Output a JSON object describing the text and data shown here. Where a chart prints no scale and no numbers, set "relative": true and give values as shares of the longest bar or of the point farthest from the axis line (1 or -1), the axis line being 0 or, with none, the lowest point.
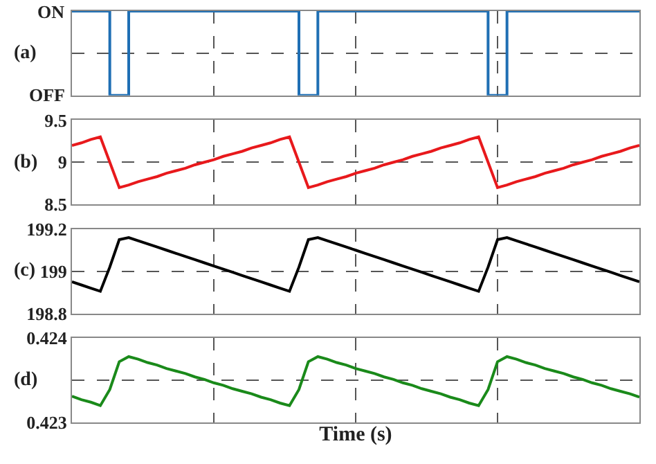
{
  "chart_data": [
    {
      "type": "step",
      "annotations": [
        "(a)",
        "ON",
        "OFF"
      ],
      "relative": true,
      "categories": [
        null,
        null,
        null,
        null,
        null,
        null,
        null,
        null,
        null,
        null,
        null,
        null,
        null,
        null,
        null,
        null,
        null,
        null,
        null,
        null,
        null,
        null,
        null,
        null,
        null,
        null,
        null,
        null,
        null,
        null,
        null,
        null,
        null,
        null,
        null,
        null,
        null,
        null,
        null,
        null,
        null,
        null,
        null,
        null,
        null,
        null,
        null,
        null,
        null,
        null,
        null,
        null,
        null,
        null,
        null,
        null,
        null,
        null,
        null,
        null,
        null
      ],
      "series": [
        {
          "color": "#1f6fb4",
          "values": [
            1,
            1,
            1,
            1,
            0,
            0,
            1,
            1,
            1,
            1,
            1,
            1,
            1,
            1,
            1,
            1,
            1,
            1,
            1,
            1,
            1,
            1,
            1,
            1,
            0,
            0,
            1,
            1,
            1,
            1,
            1,
            1,
            1,
            1,
            1,
            1,
            1,
            1,
            1,
            1,
            1,
            1,
            1,
            1,
            0,
            0,
            1,
            1,
            1,
            1,
            1,
            1,
            1,
            1,
            1,
            1,
            1,
            1,
            1,
            1,
            1
          ]
        }
      ],
      "grid": true,
      "tick_labels": "y"
    },
    {
      "type": "line",
      "annotations": [
        "(b)"
      ],
      "categories": [
        null,
        null,
        null,
        null,
        null,
        null,
        null,
        null,
        null,
        null,
        null,
        null,
        null,
        null,
        null,
        null,
        null,
        null,
        null,
        null,
        null,
        null,
        null,
        null,
        null,
        null,
        null,
        null,
        null,
        null,
        null,
        null,
        null,
        null,
        null,
        null,
        null,
        null,
        null,
        null,
        null,
        null,
        null,
        null,
        null,
        null,
        null,
        null,
        null,
        null,
        null,
        null,
        null,
        null,
        null,
        null,
        null,
        null,
        null,
        null,
        null
      ],
      "series": [
        {
          "color": "#e8191c",
          "values": [
            9.2,
            9.23,
            9.27,
            9.3,
            9.0,
            8.7,
            8.73,
            8.77,
            8.8,
            8.83,
            8.87,
            8.9,
            8.93,
            8.97,
            9.0,
            9.03,
            9.07,
            9.1,
            9.13,
            9.17,
            9.2,
            9.23,
            9.27,
            9.3,
            9.0,
            8.7,
            8.73,
            8.77,
            8.8,
            8.83,
            8.87,
            8.9,
            8.93,
            8.97,
            9.0,
            9.03,
            9.07,
            9.1,
            9.13,
            9.17,
            9.2,
            9.23,
            9.27,
            9.3,
            9.0,
            8.7,
            8.73,
            8.77,
            8.8,
            8.83,
            8.87,
            8.9,
            8.93,
            8.97,
            9.0,
            9.03,
            9.07,
            9.1,
            9.13,
            9.17,
            9.2
          ]
        }
      ],
      "ylim": [
        8.5,
        9.5
      ],
      "yticks": [
        8.5,
        9,
        9.5
      ],
      "grid": true,
      "tick_labels": "y"
    },
    {
      "type": "line",
      "annotations": [
        "(c)"
      ],
      "categories": [
        null,
        null,
        null,
        null,
        null,
        null,
        null,
        null,
        null,
        null,
        null,
        null,
        null,
        null,
        null,
        null,
        null,
        null,
        null,
        null,
        null,
        null,
        null,
        null,
        null,
        null,
        null,
        null,
        null,
        null,
        null,
        null,
        null,
        null,
        null,
        null,
        null,
        null,
        null,
        null,
        null,
        null,
        null,
        null,
        null,
        null,
        null,
        null,
        null,
        null,
        null,
        null,
        null,
        null,
        null,
        null,
        null,
        null,
        null,
        null,
        null
      ],
      "series": [
        {
          "color": "#000000",
          "values": [
            198.95,
            198.935,
            198.92,
            198.905,
            199.02,
            199.15,
            199.16,
            199.145,
            199.13,
            199.115,
            199.1,
            199.085,
            199.07,
            199.055,
            199.04,
            199.025,
            199.01,
            198.995,
            198.98,
            198.965,
            198.95,
            198.935,
            198.92,
            198.905,
            199.02,
            199.15,
            199.16,
            199.145,
            199.13,
            199.115,
            199.1,
            199.085,
            199.07,
            199.055,
            199.04,
            199.025,
            199.01,
            198.995,
            198.98,
            198.965,
            198.95,
            198.935,
            198.92,
            198.905,
            199.02,
            199.15,
            199.16,
            199.145,
            199.13,
            199.115,
            199.1,
            199.085,
            199.07,
            199.055,
            199.04,
            199.025,
            199.01,
            198.995,
            198.98,
            198.965,
            198.95
          ]
        }
      ],
      "ylim": [
        198.8,
        199.2
      ],
      "yticks": [
        198.8,
        199,
        199.2
      ],
      "grid": true,
      "tick_labels": "y"
    },
    {
      "type": "line",
      "annotations": [
        "(d)"
      ],
      "xlabel": "Time (s)",
      "categories": [
        null,
        null,
        null,
        null,
        null,
        null,
        null,
        null,
        null,
        null,
        null,
        null,
        null,
        null,
        null,
        null,
        null,
        null,
        null,
        null,
        null,
        null,
        null,
        null,
        null,
        null,
        null,
        null,
        null,
        null,
        null,
        null,
        null,
        null,
        null,
        null,
        null,
        null,
        null,
        null,
        null,
        null,
        null,
        null,
        null,
        null,
        null,
        null,
        null,
        null,
        null,
        null,
        null,
        null,
        null,
        null,
        null,
        null,
        null,
        null,
        null
      ],
      "series": [
        {
          "color": "#1a8a1a",
          "values": [
            0.42331,
            0.42327,
            0.42324,
            0.4232,
            0.42339,
            0.42372,
            0.42378,
            0.42375,
            0.42371,
            0.42368,
            0.42364,
            0.42361,
            0.42358,
            0.42354,
            0.42351,
            0.42347,
            0.42344,
            0.4234,
            0.42337,
            0.42334,
            0.4233,
            0.42327,
            0.42323,
            0.4232,
            0.42339,
            0.42372,
            0.42378,
            0.42375,
            0.42371,
            0.42368,
            0.42364,
            0.42361,
            0.42358,
            0.42354,
            0.42351,
            0.42347,
            0.42344,
            0.4234,
            0.42337,
            0.42334,
            0.4233,
            0.42327,
            0.42323,
            0.4232,
            0.42339,
            0.42372,
            0.42378,
            0.42375,
            0.42371,
            0.42368,
            0.42364,
            0.42361,
            0.42358,
            0.42354,
            0.42351,
            0.42347,
            0.42344,
            0.4234,
            0.42337,
            0.42334,
            0.4233
          ]
        }
      ],
      "ylim": [
        0.423,
        0.424
      ],
      "yticks": [
        0.423,
        {
          "value": 0.4235,
          "label": null
        },
        0.424
      ],
      "grid": true,
      "tick_labels": "y"
    }
  ]
}
